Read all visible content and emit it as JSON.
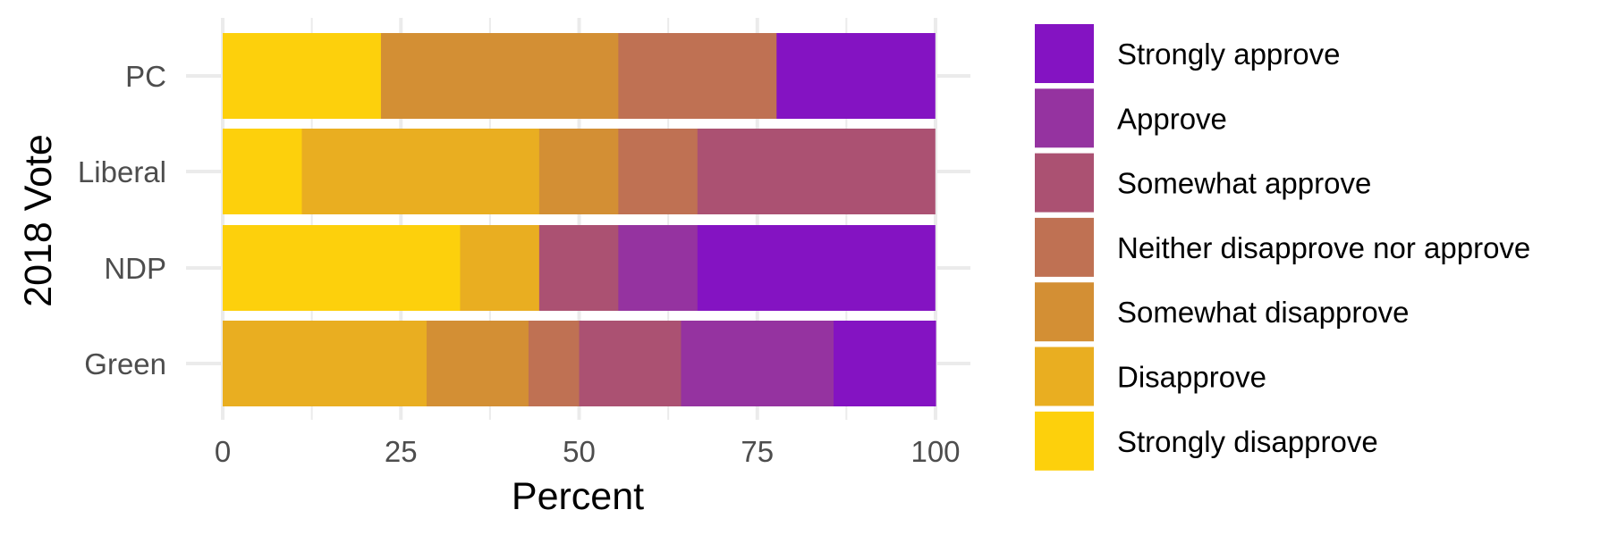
{
  "chart_data": {
    "type": "bar",
    "orientation": "horizontal",
    "stacked": true,
    "xlabel": "Percent",
    "ylabel": "2018 Vote",
    "xlim": [
      0,
      100
    ],
    "x_ticks": [
      0,
      25,
      50,
      75,
      100
    ],
    "grid": true,
    "legend_position": "right",
    "categories": [
      "PC",
      "Liberal",
      "NDP",
      "Green"
    ],
    "series": [
      {
        "name": "Strongly disapprove",
        "color": "#FDD00C",
        "values": [
          22.2,
          11.1,
          33.3,
          0
        ]
      },
      {
        "name": "Disapprove",
        "color": "#E9AE21",
        "values": [
          0,
          33.3,
          11.1,
          28.6
        ]
      },
      {
        "name": "Somewhat disapprove",
        "color": "#D38F34",
        "values": [
          33.3,
          11.1,
          0,
          14.3
        ]
      },
      {
        "name": "Neither disapprove nor approve",
        "color": "#BF7153",
        "values": [
          22.2,
          11.1,
          0,
          7.1
        ]
      },
      {
        "name": "Somewhat approve",
        "color": "#AB5172",
        "values": [
          0,
          33.3,
          11.1,
          14.3
        ]
      },
      {
        "name": "Approve",
        "color": "#9533A0",
        "values": [
          0,
          0,
          11.1,
          21.4
        ]
      },
      {
        "name": "Strongly approve",
        "color": "#8413C2",
        "values": [
          22.2,
          0,
          33.3,
          14.3
        ]
      }
    ]
  }
}
